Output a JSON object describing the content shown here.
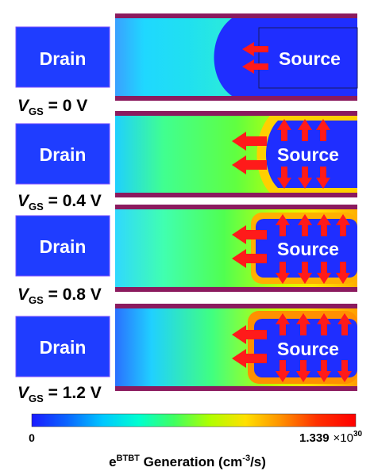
{
  "panels": [
    {
      "drain_label": "Drain",
      "source_label": "Source",
      "vgs_symbol": "V",
      "vgs_subscript": "GS",
      "vgs_value": " = 0 V"
    },
    {
      "drain_label": "Drain",
      "source_label": "Source",
      "vgs_symbol": "V",
      "vgs_subscript": "GS",
      "vgs_value": " = 0.4 V"
    },
    {
      "drain_label": "Drain",
      "source_label": "Source",
      "vgs_symbol": "V",
      "vgs_subscript": "GS",
      "vgs_value": " = 0.8 V"
    },
    {
      "drain_label": "Drain",
      "source_label": "Source",
      "vgs_symbol": "V",
      "vgs_subscript": "GS",
      "vgs_value": " = 1.2 V"
    }
  ],
  "colorbar": {
    "min_label": "0",
    "max_label": "1.339",
    "max_exponent_base": "×10",
    "max_exponent": "30",
    "title_prefix": "e",
    "title_superscript": "BTBT",
    "title_main": " Generation (cm",
    "title_unit_superscript": "-3",
    "title_suffix": "/s)",
    "colors": [
      "#1a1aff",
      "#0a66ff",
      "#00c8ff",
      "#00ffd0",
      "#40ff60",
      "#b0ff00",
      "#ffe000",
      "#ff9000",
      "#ff3000",
      "#ff0000"
    ]
  },
  "colors": {
    "drain_fill": "#1f3dff",
    "device_blue": "#1f2eff",
    "oxide": "#8b1a5e",
    "arrow_red": "#ff1a1a",
    "gen_green": "#39ff4a",
    "gen_yellow": "#ffe600",
    "gen_cyan": "#20d6ff"
  }
}
